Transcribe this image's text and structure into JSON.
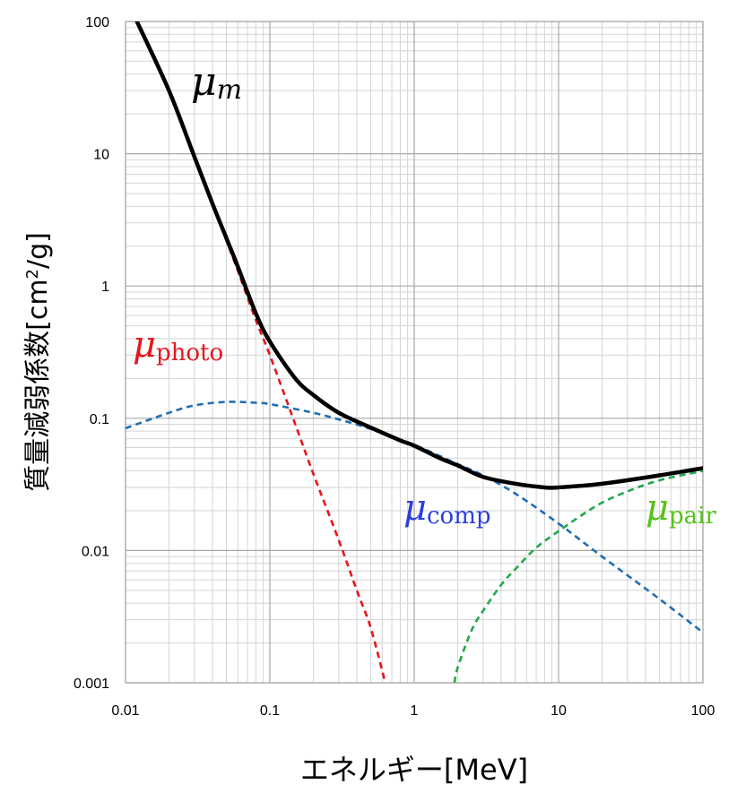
{
  "chart_data": {
    "type": "line",
    "xlabel": "エネルギー[MeV]",
    "ylabel": "質量減弱係数[cm²/g]",
    "ylabel_parts": {
      "main": "質量減弱係数[cm",
      "sup": "2",
      "tail": "/g]"
    },
    "x_scale": "log",
    "y_scale": "log",
    "xlim": [
      0.01,
      100
    ],
    "ylim": [
      0.001,
      100
    ],
    "grid": true,
    "x_ticks": [
      "0.01",
      "0.1",
      "1",
      "10",
      "100"
    ],
    "y_ticks": [
      "0.001",
      "0.01",
      "0.1",
      "1",
      "10",
      "100"
    ],
    "series": [
      {
        "name": "μm",
        "label_symbol": "μ",
        "label_sub": "m",
        "color": "#000000",
        "style": "solid",
        "x": [
          0.012,
          0.02,
          0.03,
          0.04,
          0.05,
          0.06,
          0.08,
          0.1,
          0.15,
          0.2,
          0.3,
          0.5,
          0.8,
          1,
          1.5,
          2,
          3,
          5,
          8,
          10,
          20,
          50,
          100
        ],
        "y": [
          100,
          30,
          9.5,
          4.2,
          2.3,
          1.4,
          0.62,
          0.38,
          0.2,
          0.15,
          0.11,
          0.085,
          0.068,
          0.062,
          0.05,
          0.044,
          0.036,
          0.032,
          0.03,
          0.03,
          0.032,
          0.037,
          0.042
        ]
      },
      {
        "name": "μphoto",
        "label_symbol": "μ",
        "label_sub": "photo",
        "color": "#e8141c",
        "style": "dashed",
        "x": [
          0.03,
          0.04,
          0.05,
          0.06,
          0.08,
          0.1,
          0.15,
          0.2,
          0.3,
          0.4,
          0.5,
          0.63
        ],
        "y": [
          9.3,
          4.1,
          2.2,
          1.3,
          0.55,
          0.3,
          0.09,
          0.038,
          0.012,
          0.005,
          0.0026,
          0.001
        ]
      },
      {
        "name": "μcomp",
        "label_symbol": "μ",
        "label_sub": "comp",
        "color": "#1f6eb5",
        "style": "dashed",
        "x": [
          0.01,
          0.02,
          0.03,
          0.05,
          0.08,
          0.1,
          0.2,
          0.3,
          0.5,
          1,
          2,
          3,
          5,
          10,
          20,
          50,
          100
        ],
        "y": [
          0.084,
          0.11,
          0.125,
          0.133,
          0.131,
          0.128,
          0.11,
          0.098,
          0.083,
          0.063,
          0.045,
          0.037,
          0.027,
          0.016,
          0.009,
          0.0043,
          0.0024
        ]
      },
      {
        "name": "μpair",
        "label_symbol": "μ",
        "label_sub": "pair",
        "color": "#20a84a",
        "style": "dashed",
        "x": [
          1.9,
          2,
          2.5,
          3,
          4,
          5,
          7,
          10,
          15,
          20,
          30,
          50,
          100
        ],
        "y": [
          0.001,
          0.0013,
          0.0025,
          0.0035,
          0.0055,
          0.0072,
          0.0105,
          0.014,
          0.019,
          0.023,
          0.028,
          0.034,
          0.04
        ]
      }
    ]
  }
}
